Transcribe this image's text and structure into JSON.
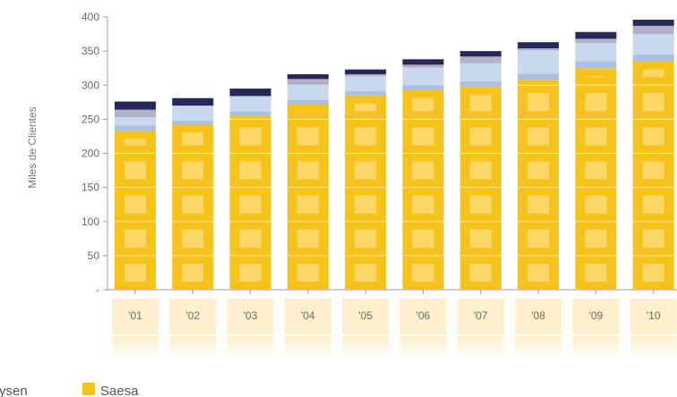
{
  "chart_data": {
    "type": "bar",
    "stacked": true,
    "categories": [
      "'01",
      "'02",
      "'03",
      "'04",
      "'05",
      "'06",
      "'07",
      "'08",
      "'09",
      "'10"
    ],
    "ylabel": "Miles de Clientes",
    "ylim": [
      0,
      400
    ],
    "yticks": [
      0,
      50,
      100,
      150,
      200,
      250,
      300,
      350,
      400
    ],
    "ytick_labels": [
      "-",
      "50",
      "100",
      "150",
      "200",
      "250",
      "300",
      "350",
      "400"
    ],
    "series": [
      {
        "name": "Saesa",
        "color": "#f6c21c",
        "values": [
          233,
          242,
          255,
          272,
          285,
          293,
          298,
          308,
          325,
          335
        ]
      },
      {
        "color": "#a9c1df",
        "values": [
          8,
          6,
          6,
          6,
          6,
          7,
          8,
          9,
          10,
          10
        ]
      },
      {
        "color": "#c9d8ec",
        "values": [
          12,
          22,
          23,
          23,
          22,
          26,
          26,
          34,
          27,
          30
        ]
      },
      {
        "color": "#b0b0c6",
        "values": [
          11,
          0,
          0,
          8,
          3,
          4,
          10,
          3,
          6,
          12
        ]
      },
      {
        "color": "#27285a",
        "values": [
          12,
          11,
          11,
          7,
          7,
          8,
          8,
          9,
          10,
          9
        ]
      }
    ],
    "legend": [
      {
        "label": "ysen",
        "color": null
      },
      {
        "label": "Saesa",
        "color": "#f6c21c"
      }
    ],
    "legend_position": "bottom",
    "grid": false
  }
}
